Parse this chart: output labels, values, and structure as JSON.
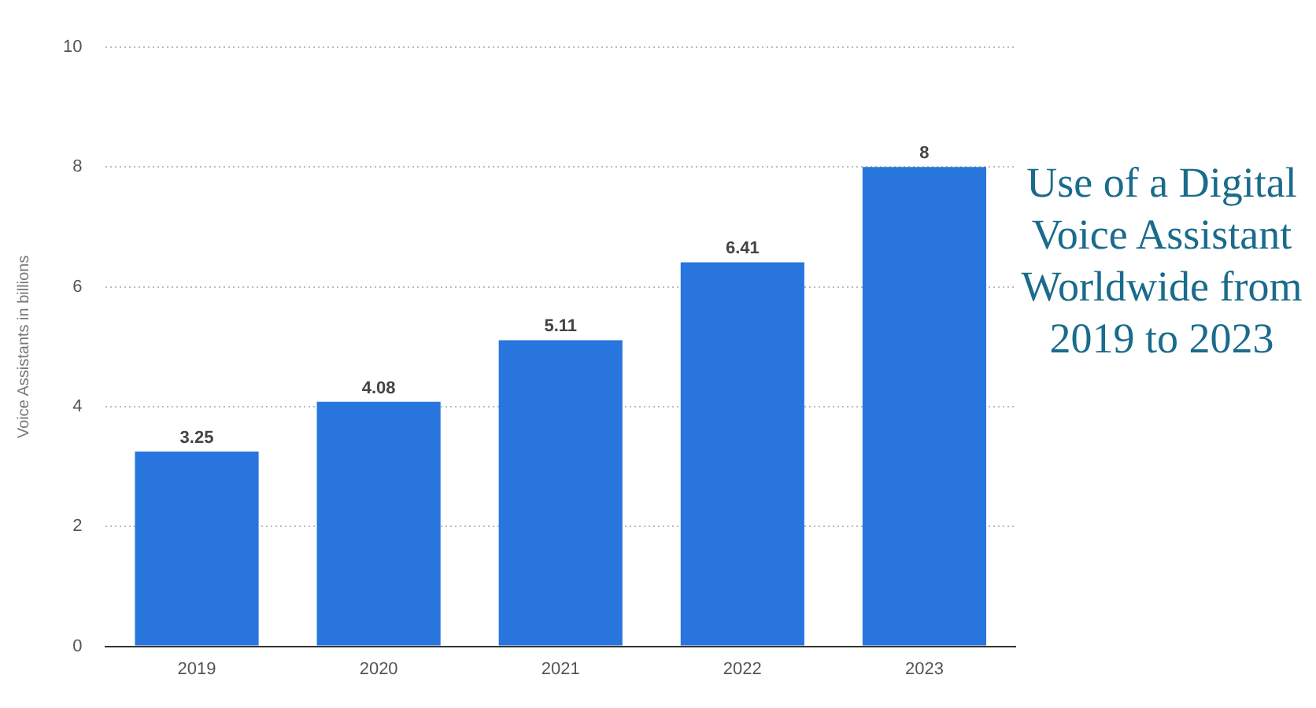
{
  "chart_data": {
    "type": "bar",
    "title": "Use of a Digital Voice Assistant Worldwide from 2019 to 2023",
    "ylabel": "Voice Assistants in billions",
    "categories": [
      "2019",
      "2020",
      "2021",
      "2022",
      "2023"
    ],
    "values": [
      3.25,
      4.08,
      5.11,
      6.41,
      8
    ],
    "color": "#2876dd",
    "ylim": [
      0,
      10
    ],
    "yticks": [
      0,
      2,
      4,
      6,
      8,
      10
    ],
    "grid": "y",
    "data_labels": true
  }
}
